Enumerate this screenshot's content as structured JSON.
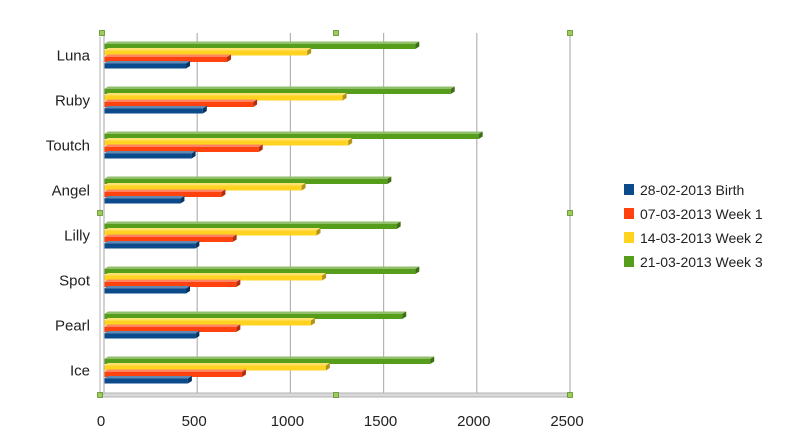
{
  "chart_data": {
    "type": "bar",
    "orientation": "horizontal",
    "categories": [
      "Luna",
      "Ruby",
      "Toutch",
      "Angel",
      "Lilly",
      "Spot",
      "Pearl",
      "Ice"
    ],
    "series": [
      {
        "name": "28-02-2013 Birth",
        "color": "#0b4a8b",
        "values": [
          440,
          530,
          470,
          410,
          490,
          440,
          490,
          450
        ]
      },
      {
        "name": "07-03-2013 Week 1",
        "color": "#ff420e",
        "values": [
          660,
          800,
          830,
          630,
          690,
          710,
          710,
          740
        ]
      },
      {
        "name": "14-03-2013 Week 2",
        "color": "#ffd320",
        "values": [
          1090,
          1280,
          1310,
          1060,
          1140,
          1170,
          1110,
          1190
        ]
      },
      {
        "name": "21-03-2013 Week 3",
        "color": "#579d1c",
        "values": [
          1670,
          1860,
          2010,
          1520,
          1570,
          1670,
          1600,
          1750
        ]
      }
    ],
    "xlim": [
      0,
      2500
    ],
    "xticks": [
      0,
      500,
      1000,
      1500,
      2000,
      2500
    ],
    "grid": true,
    "legend_position": "right",
    "title": "",
    "xlabel": "",
    "ylabel": ""
  }
}
